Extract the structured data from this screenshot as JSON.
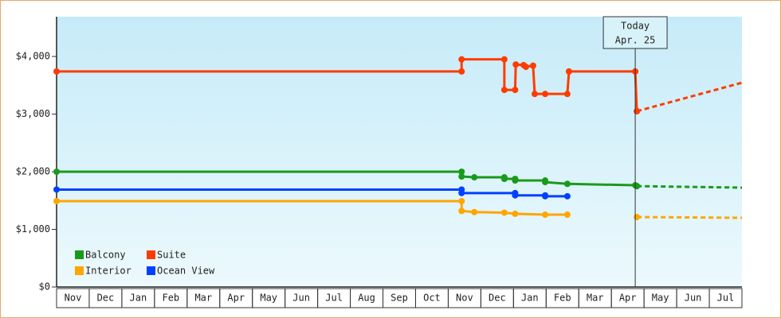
{
  "chart_data": {
    "type": "line",
    "categories": [
      "Nov",
      "Dec",
      "Jan",
      "Feb",
      "Mar",
      "Apr",
      "May",
      "Jun",
      "Jul",
      "Aug",
      "Sep",
      "Oct",
      "Nov",
      "Dec",
      "Jan",
      "Feb",
      "Mar",
      "Apr",
      "May",
      "Jun",
      "Jul"
    ],
    "xlim": [
      0,
      21
    ],
    "ylim": [
      0,
      4690
    ],
    "yticks": [
      {
        "value": 0,
        "label": "$0"
      },
      {
        "value": 1000,
        "label": "$1,000"
      },
      {
        "value": 2000,
        "label": "$2,000"
      },
      {
        "value": 3000,
        "label": "$3,000"
      },
      {
        "value": 4000,
        "label": "$4,000"
      }
    ],
    "annotation": {
      "lines": [
        "Today",
        "Apr. 25"
      ],
      "x": 17.73
    },
    "series": [
      {
        "name": "Balcony",
        "color": "#1a9a1a",
        "x": [
          0,
          12.41,
          12.41,
          12.8,
          13.72,
          13.72,
          14.05,
          14.05,
          14.97,
          14.97,
          15.65,
          17.73,
          17.78
        ],
        "values": [
          2000,
          2000,
          1917,
          1903,
          1903,
          1876,
          1876,
          1848,
          1848,
          1820,
          1790,
          1765,
          1750
        ],
        "forecast_x": [
          17.78,
          21
        ],
        "forecast_values": [
          1750,
          1724
        ]
      },
      {
        "name": "Suite",
        "color": "#ff3c00",
        "x": [
          0,
          12.41,
          12.41,
          13.72,
          13.72,
          14.05,
          14.07,
          14.31,
          14.38,
          14.6,
          14.65,
          14.97,
          15.65,
          15.7,
          17.73,
          17.78
        ],
        "values": [
          3740,
          3740,
          3950,
          3950,
          3420,
          3420,
          3860,
          3850,
          3820,
          3840,
          3350,
          3350,
          3350,
          3740,
          3740,
          3050
        ],
        "forecast_x": [
          17.78,
          21
        ],
        "forecast_values": [
          3050,
          3545
        ]
      },
      {
        "name": "Interior",
        "color": "#ffa500",
        "x": [
          0,
          12.41,
          12.41,
          12.8,
          13.72,
          14.05,
          14.97,
          15.65
        ],
        "values": [
          1490,
          1490,
          1320,
          1300,
          1290,
          1270,
          1255,
          1255
        ],
        "forecast_x": [
          17.78,
          21
        ],
        "forecast_values": [
          1214,
          1200
        ]
      },
      {
        "name": "Ocean View",
        "color": "#0040ff",
        "x": [
          0,
          12.41,
          12.41,
          14.05,
          14.05,
          14.97,
          14.97,
          15.65
        ],
        "values": [
          1690,
          1690,
          1630,
          1630,
          1590,
          1590,
          1575,
          1575
        ]
      }
    ]
  }
}
